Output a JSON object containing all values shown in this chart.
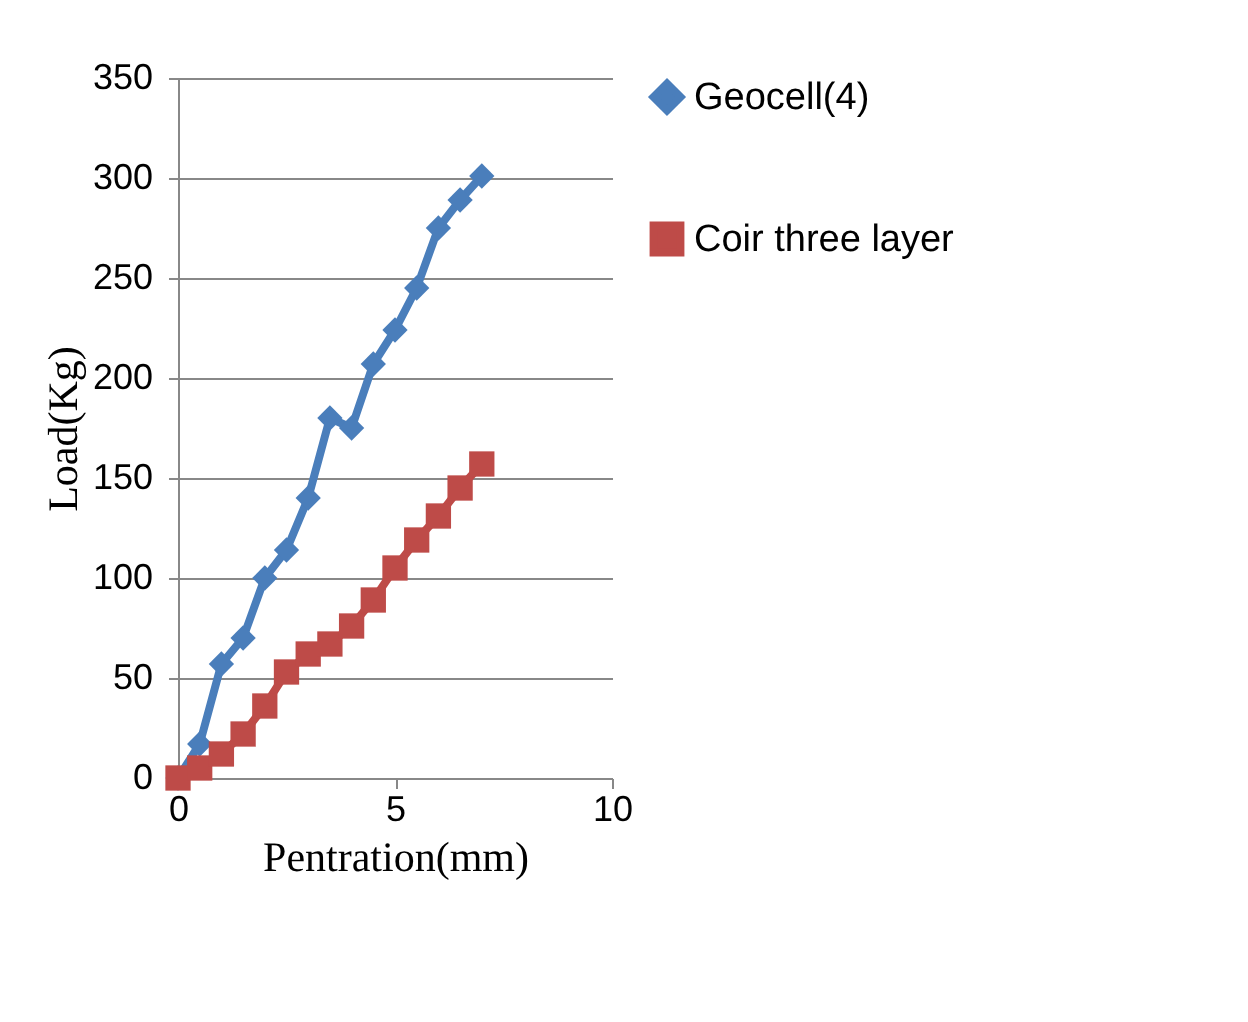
{
  "chart_data": {
    "type": "line",
    "xlabel": "Pentration(mm)",
    "ylabel": "Load(Kg)",
    "xlim": [
      0,
      10
    ],
    "xticks": [
      0,
      5,
      10
    ],
    "ylim": [
      0,
      350
    ],
    "yticks": [
      0,
      50,
      100,
      150,
      200,
      250,
      300,
      350
    ],
    "grid": "y",
    "legend": "right",
    "series": [
      {
        "name": "Geocell(4)",
        "color": "#4a7ebb",
        "marker": "diamond",
        "x": [
          0,
          0.5,
          1,
          1.5,
          2,
          2.5,
          3,
          3.5,
          4,
          4.5,
          5,
          5.5,
          6,
          6.5,
          7
        ],
        "values": [
          0,
          17,
          57,
          70,
          100,
          114,
          140,
          180,
          175,
          207,
          224,
          245,
          275,
          289,
          301
        ]
      },
      {
        "name": "Coir three layer",
        "color": "#be4b48",
        "marker": "square",
        "x": [
          0,
          0.5,
          1,
          1.5,
          2,
          2.5,
          3,
          3.5,
          4,
          4.5,
          5,
          5.5,
          6,
          6.5,
          7
        ],
        "values": [
          0,
          5,
          12,
          22,
          36,
          53,
          62,
          67,
          76,
          89,
          105,
          119,
          131,
          145,
          157
        ]
      }
    ]
  }
}
